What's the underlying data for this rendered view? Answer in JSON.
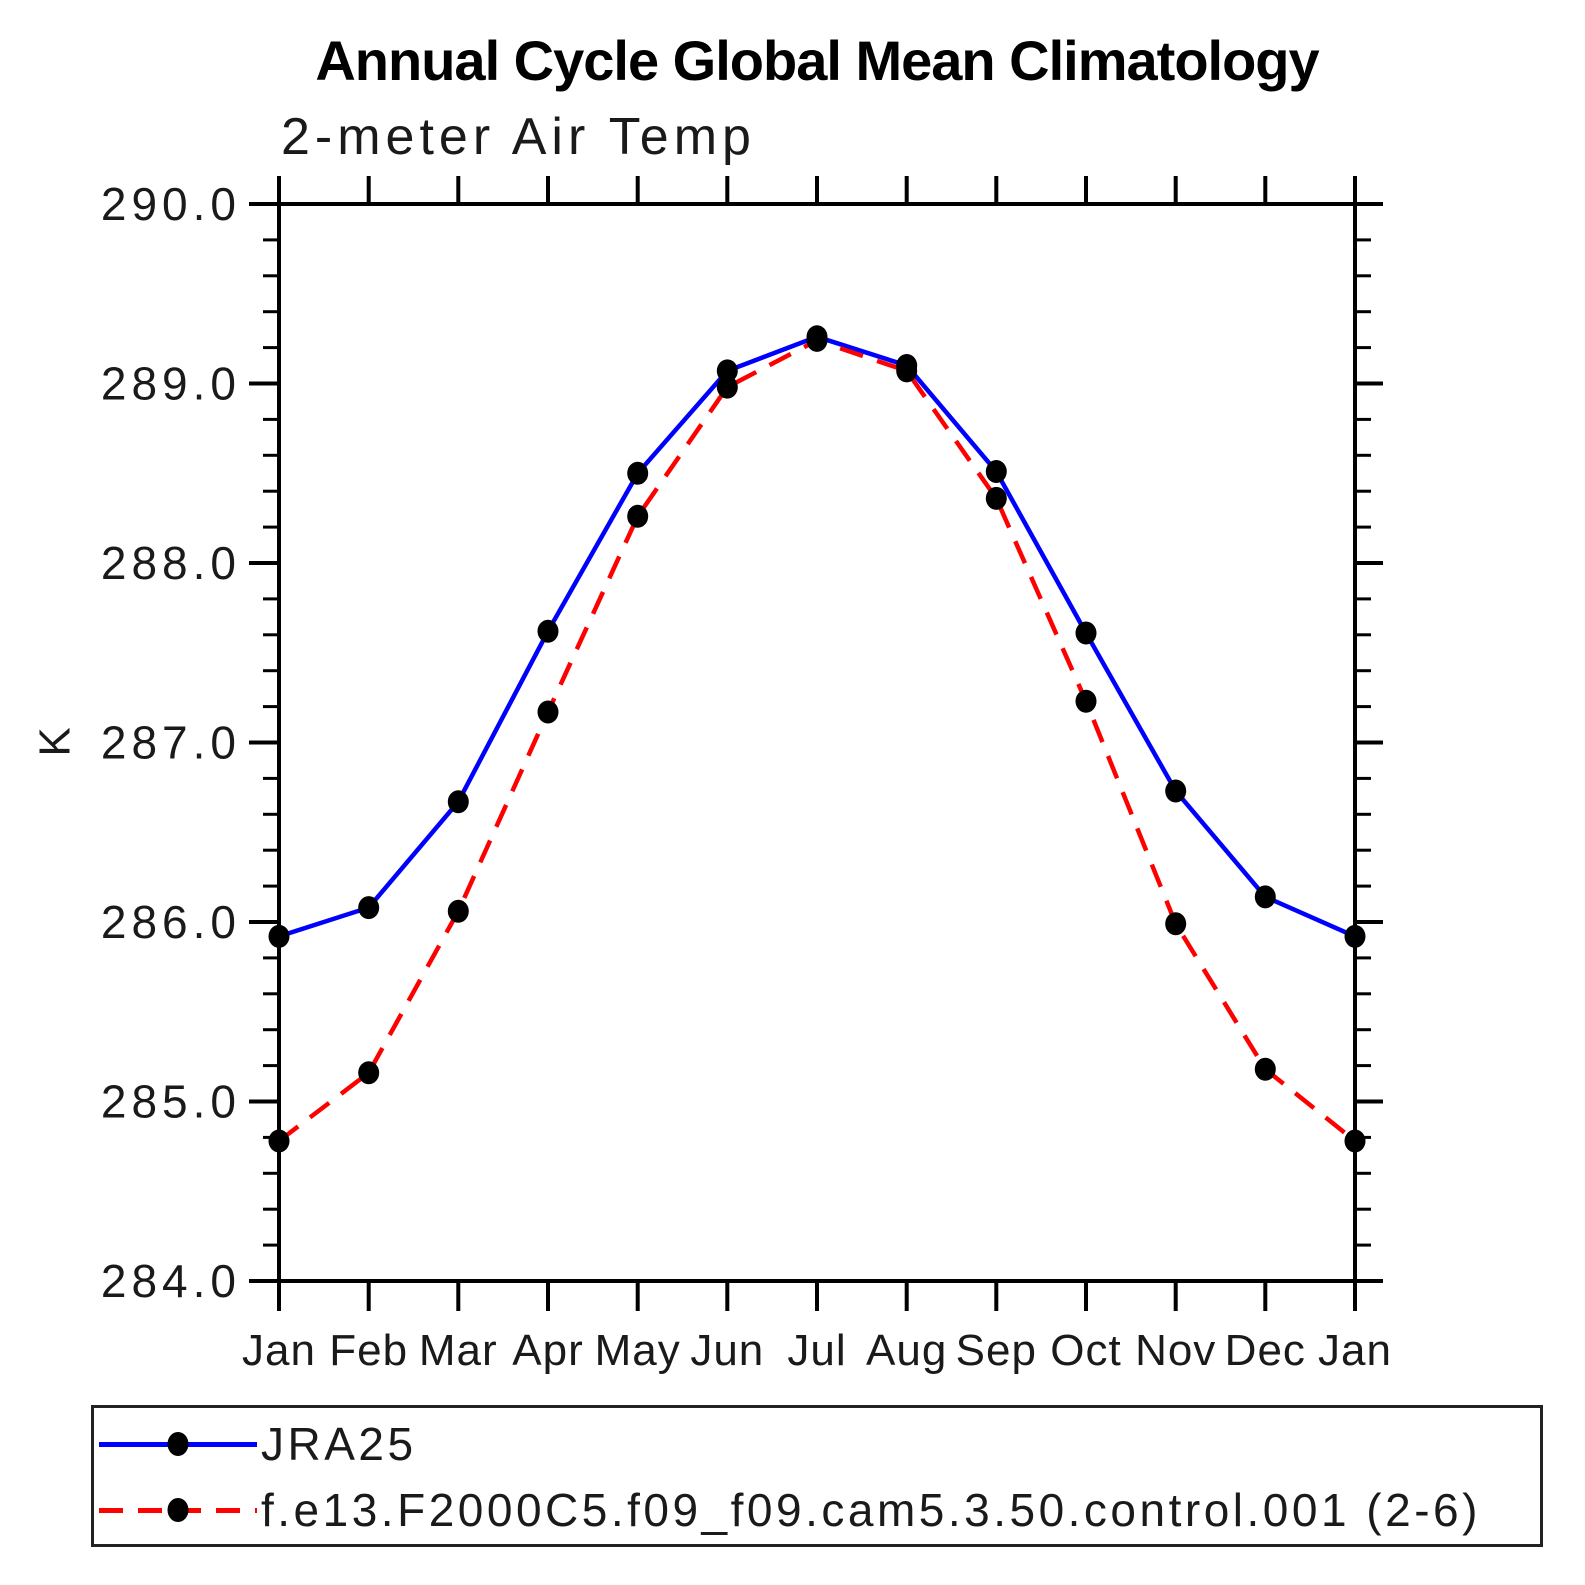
{
  "chart_data": {
    "type": "line",
    "title": "Annual Cycle Global Mean Climatology",
    "subtitle": "2-meter Air Temp",
    "ylabel": "K",
    "xlabel": "",
    "categories": [
      "Jan",
      "Feb",
      "Mar",
      "Apr",
      "May",
      "Jun",
      "Jul",
      "Aug",
      "Sep",
      "Oct",
      "Nov",
      "Dec",
      "Jan"
    ],
    "ylim": [
      284.0,
      290.0
    ],
    "ytick_step": 1.0,
    "yminor_step": 0.2,
    "ytick_labels_top_to_bottom": [
      "290.0",
      "289.0",
      "288.0",
      "287.0",
      "286.0",
      "285.0",
      "284.0"
    ],
    "grid": false,
    "legend_position": "bottom-left-box",
    "marker_color": "#000000",
    "axis_color": "#000000",
    "series": [
      {
        "name": "JRA25",
        "color": "#0000ff",
        "line_style": "solid",
        "marker": "filled-black-circle",
        "values": [
          285.92,
          286.08,
          286.67,
          287.62,
          288.5,
          289.07,
          289.26,
          289.1,
          288.51,
          287.61,
          286.73,
          286.14,
          285.92
        ]
      },
      {
        "name": "f.e13.F2000C5.f09_f09.cam5.3.50.control.001 (2-6)",
        "color": "#ff0000",
        "line_style": "dashed",
        "marker": "filled-black-circle",
        "values": [
          284.78,
          285.16,
          286.06,
          287.17,
          288.26,
          288.98,
          289.24,
          289.07,
          288.36,
          287.23,
          285.99,
          285.18,
          284.78
        ]
      }
    ]
  }
}
